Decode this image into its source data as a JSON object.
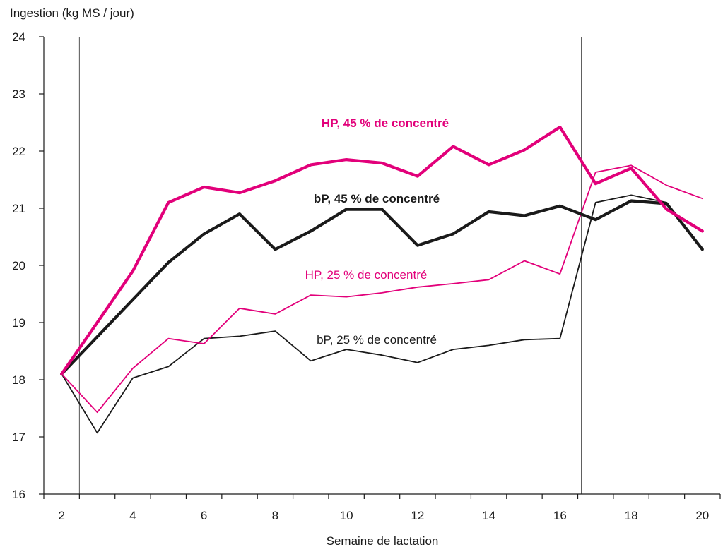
{
  "chart_data": {
    "type": "line",
    "ylabel": "Ingestion  (kg MS / jour)",
    "xlabel": "Semaine de lactation",
    "xlim": [
      1.5,
      20.5
    ],
    "ylim": [
      16,
      24
    ],
    "x_tick_labels": [
      "2",
      "4",
      "6",
      "8",
      "10",
      "12",
      "14",
      "16",
      "18",
      "20"
    ],
    "y_tick_labels": [
      "16",
      "17",
      "18",
      "19",
      "20",
      "21",
      "22",
      "23",
      "24"
    ],
    "reference_lines_x": [
      2.5,
      16.6
    ],
    "grid": false,
    "series": [
      {
        "name": "HP, 45 % de concentré",
        "color": "#e2007a",
        "bold": true,
        "x": [
          2,
          3,
          4,
          5,
          6,
          7,
          8,
          9,
          10,
          11,
          12,
          13,
          14,
          15,
          16,
          17,
          18,
          19,
          20
        ],
        "values": [
          18.1,
          19.0,
          19.9,
          21.1,
          21.37,
          21.27,
          21.48,
          21.76,
          21.85,
          21.79,
          21.56,
          22.08,
          21.76,
          22.02,
          22.42,
          21.43,
          21.7,
          20.98,
          20.6
        ]
      },
      {
        "name": "bP, 45 % de concentré",
        "color": "#1a1a1a",
        "bold": true,
        "x": [
          2,
          4,
          5,
          6,
          7,
          8,
          9,
          10,
          11,
          12,
          13,
          14,
          15,
          16,
          17,
          18,
          19,
          20
        ],
        "values": [
          18.1,
          19.4,
          20.05,
          20.55,
          20.9,
          20.28,
          20.6,
          20.98,
          20.98,
          20.35,
          20.55,
          20.94,
          20.87,
          21.04,
          20.8,
          21.13,
          21.08,
          20.28
        ]
      },
      {
        "name": "HP, 25 % de concentré",
        "color": "#e2007a",
        "bold": false,
        "x": [
          2,
          3,
          4,
          5,
          6,
          7,
          8,
          9,
          10,
          11,
          12,
          13,
          14,
          15,
          16,
          17,
          18,
          19,
          20
        ],
        "values": [
          18.1,
          17.43,
          18.2,
          18.72,
          18.63,
          19.25,
          19.15,
          19.48,
          19.45,
          19.52,
          19.62,
          19.68,
          19.75,
          20.08,
          19.85,
          21.63,
          21.75,
          21.4,
          21.17
        ]
      },
      {
        "name": "bP, 25 % de concentré",
        "color": "#1a1a1a",
        "bold": false,
        "x": [
          2,
          3,
          4,
          5,
          6,
          7,
          8,
          9,
          10,
          11,
          12,
          13,
          14,
          15,
          16,
          17,
          18,
          19,
          20
        ],
        "values": [
          18.1,
          17.07,
          18.03,
          18.23,
          18.72,
          18.76,
          18.85,
          18.33,
          18.53,
          18.43,
          18.3,
          18.53,
          18.6,
          18.7,
          18.72,
          21.1,
          21.23,
          21.1,
          20.28
        ]
      }
    ]
  }
}
